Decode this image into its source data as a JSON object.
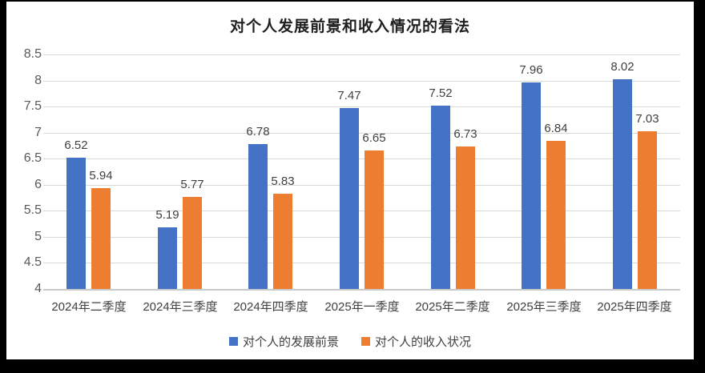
{
  "chart_data": {
    "type": "bar",
    "title": "对个人发展前景和收入情况的看法",
    "categories": [
      "2024年二季度",
      "2024年三季度",
      "2024年四季度",
      "2025年一季度",
      "2025年二季度",
      "2025年三季度",
      "2025年四季度"
    ],
    "series": [
      {
        "name": "对个人的发展前景",
        "color": "#4472C4",
        "values": [
          6.52,
          5.19,
          6.78,
          7.47,
          7.52,
          7.96,
          8.02
        ]
      },
      {
        "name": "对个人的收入状况",
        "color": "#ED7D31",
        "values": [
          5.94,
          5.77,
          5.83,
          6.65,
          6.73,
          6.84,
          7.03
        ]
      }
    ],
    "ylim": [
      4,
      8.5
    ],
    "ytick_step": 0.5,
    "ytick_labels": [
      "4",
      "4.5",
      "5",
      "5.5",
      "6",
      "6.5",
      "7",
      "7.5",
      "8",
      "8.5"
    ],
    "grid": true,
    "data_labels": true,
    "legend_position": "bottom",
    "xlabel": "",
    "ylabel": ""
  },
  "style": {
    "frame_color": "#000000",
    "background_color": "#ffffff",
    "gridline_color": "#d9d9d9",
    "axis_text_color": "#595959",
    "label_text_color": "#404040"
  }
}
